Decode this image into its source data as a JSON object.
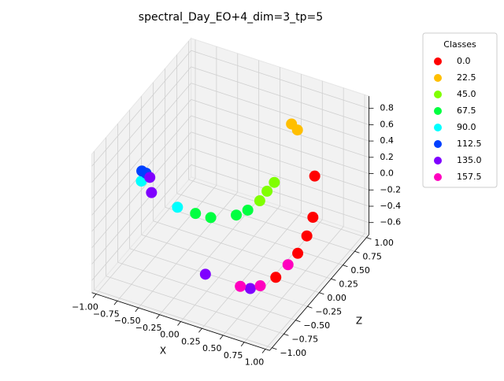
{
  "chart_data": {
    "type": "scatter3d",
    "title": "spectral_Day_EO+4_dim=3_tp=5",
    "xlabel": "X",
    "zlabel": "Z",
    "xlim": [
      -1.05,
      1.05
    ],
    "zlim": [
      -1.05,
      1.05
    ],
    "ylim": [
      -0.75,
      0.95
    ],
    "xticks": [
      {
        "value": -1,
        "label": "−1.00"
      },
      {
        "value": -0.75,
        "label": "−0.75"
      },
      {
        "value": -0.5,
        "label": "−0.50"
      },
      {
        "value": -0.25,
        "label": "−0.25"
      },
      {
        "value": 0,
        "label": "0.00"
      },
      {
        "value": 0.25,
        "label": "0.25"
      },
      {
        "value": 0.5,
        "label": "0.50"
      },
      {
        "value": 0.75,
        "label": "0.75"
      },
      {
        "value": 1,
        "label": "1.00"
      }
    ],
    "zticks": [
      {
        "value": -1,
        "label": "−1.00"
      },
      {
        "value": -0.75,
        "label": "−0.75"
      },
      {
        "value": -0.5,
        "label": "−0.50"
      },
      {
        "value": -0.25,
        "label": "−0.25"
      },
      {
        "value": 0,
        "label": "0.00"
      },
      {
        "value": 0.25,
        "label": "0.25"
      },
      {
        "value": 0.5,
        "label": "0.50"
      },
      {
        "value": 0.75,
        "label": "0.75"
      },
      {
        "value": 1,
        "label": "1.00"
      }
    ],
    "yticks": [
      {
        "value": -0.6,
        "label": "−0.6"
      },
      {
        "value": -0.4,
        "label": "−0.4"
      },
      {
        "value": -0.2,
        "label": "−0.2"
      },
      {
        "value": 0,
        "label": "0.0"
      },
      0.2,
      0.4,
      0.6,
      0.8
    ],
    "grid": true,
    "legend_title": "Classes",
    "legend_position": "upper right",
    "series": [
      {
        "name": "0.0",
        "color": "#ff0000",
        "x": [
          0.55,
          0.64,
          0.68,
          0.74,
          0.76
        ],
        "z": [
          0.8,
          0.6,
          0.4,
          0.1,
          -0.4
        ],
        "y": [
          -0.03,
          -0.37,
          -0.45,
          -0.44,
          -0.39
        ]
      },
      {
        "name": "22.5",
        "color": "#ffbf00",
        "x": [
          0.22,
          0.29
        ],
        "z": [
          0.9,
          0.9
        ],
        "y": [
          0.43,
          0.38
        ]
      },
      {
        "name": "45.0",
        "color": "#80ff00",
        "x": [
          0.18,
          0.21,
          0.24
        ],
        "z": [
          0.3,
          0.4,
          0.5
        ],
        "y": [
          -0.12,
          -0.06,
          -0.01
        ]
      },
      {
        "name": "67.5",
        "color": "#00ff40",
        "x": [
          -0.3,
          -0.12,
          0.07,
          0.15
        ],
        "z": [
          -0.2,
          -0.2,
          0,
          0.1
        ],
        "y": [
          -0.1,
          -0.09,
          -0.13,
          -0.11
        ]
      },
      {
        "name": "90.0",
        "color": "#00ffff",
        "x": [
          -0.94,
          -0.29
        ],
        "z": [
          -0.2,
          -0.6
        ],
        "y": [
          0.08,
          0.25
        ]
      },
      {
        "name": "112.5",
        "color": "#0040ff",
        "x": [
          -0.94,
          -0.99
        ],
        "z": [
          -0.1,
          -0.1
        ],
        "y": [
          0.11,
          0.12
        ]
      },
      {
        "name": "135.0",
        "color": "#7f00ff",
        "x": [
          -0.84,
          -0.82,
          0.04,
          0.71
        ],
        "z": [
          -0.2,
          -0.2,
          -0.6,
          -0.85
        ],
        "y": [
          0.16,
          -0.02,
          -0.46,
          -0.24
        ]
      },
      {
        "name": "157.5",
        "color": "#ff00bf",
        "x": [
          0.96,
          0.8,
          0.62
        ],
        "z": [
          -0.5,
          -0.8,
          -0.9
        ],
        "y": [
          -0.1,
          -0.21,
          -0.21
        ]
      }
    ]
  }
}
